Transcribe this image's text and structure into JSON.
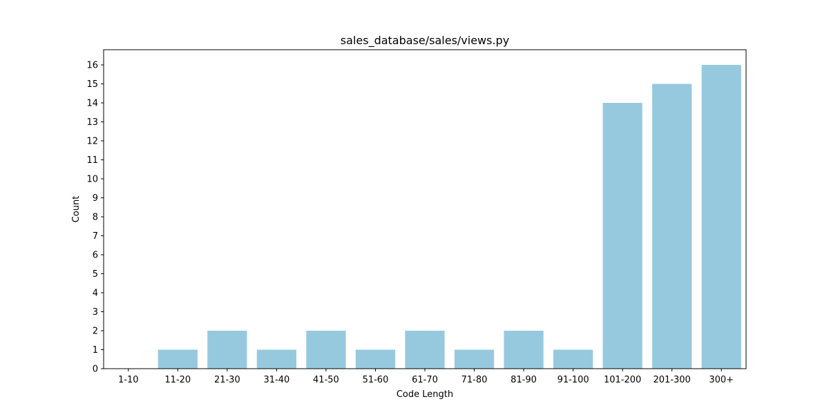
{
  "chart_data": {
    "type": "bar",
    "title": "sales_database/sales/views.py",
    "xlabel": "Code Length",
    "ylabel": "Count",
    "categories": [
      "1-10",
      "11-20",
      "21-30",
      "31-40",
      "41-50",
      "51-60",
      "61-70",
      "71-80",
      "81-90",
      "91-100",
      "101-200",
      "201-300",
      "300+"
    ],
    "values": [
      0,
      1,
      2,
      1,
      2,
      1,
      2,
      1,
      2,
      1,
      14,
      15,
      16
    ],
    "ylim": [
      0,
      16.8
    ],
    "yticks": [
      0,
      1,
      2,
      3,
      4,
      5,
      6,
      7,
      8,
      9,
      10,
      11,
      12,
      13,
      14,
      15,
      16
    ],
    "grid": false,
    "bar_color": "#96c9de"
  }
}
